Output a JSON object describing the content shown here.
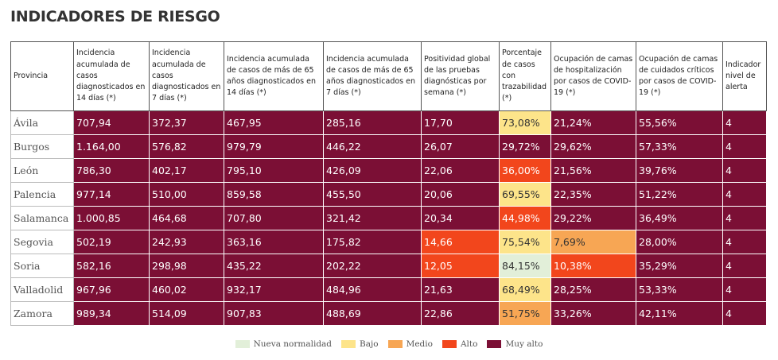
{
  "header": {
    "title": "INDICADORES DE RIESGO"
  },
  "table": {
    "columns": [
      "Provincia",
      "Incidencia acumulada de casos diagnosticados en 14 días (*)",
      "Incidencia acumulada de casos diagnosticados en 7 días (*)",
      "Incidencia acumulada de casos de más de 65 años diagnosticados en 14 días (*)",
      "Incidencia acumulada de casos de más de 65 años diagnosticados en 7 días (*)",
      "Positividad global de las pruebas diagnósticas por semana (*)",
      "Porcentaje de casos con trazabilidad (*)",
      "Ocupación de camas de hospitalización por casos de COVID-19 (*)",
      "Ocupación de camas de cuidados críticos por casos de COVID-19 (*)",
      "Indicador nivel de alerta"
    ],
    "rows": [
      {
        "province": "Ávila",
        "values": [
          "707,94",
          "372,37",
          "467,95",
          "285,16",
          "17,70",
          "73,08%",
          "21,24%",
          "55,56%",
          "4"
        ],
        "colors": [
          "#7b0f35",
          "#7b0f35",
          "#7b0f35",
          "#7b0f35",
          "#7b0f35",
          "#fde48a",
          "#7b0f35",
          "#7b0f35",
          "#7b0f35"
        ]
      },
      {
        "province": "Burgos",
        "values": [
          "1.164,00",
          "576,82",
          "979,79",
          "446,22",
          "26,07",
          "29,72%",
          "29,62%",
          "57,33%",
          "4"
        ],
        "colors": [
          "#7b0f35",
          "#7b0f35",
          "#7b0f35",
          "#7b0f35",
          "#7b0f35",
          "#7b0f35",
          "#7b0f35",
          "#7b0f35",
          "#7b0f35"
        ]
      },
      {
        "province": "León",
        "values": [
          "786,30",
          "402,17",
          "795,10",
          "426,09",
          "22,06",
          "36,00%",
          "21,56%",
          "39,76%",
          "4"
        ],
        "colors": [
          "#7b0f35",
          "#7b0f35",
          "#7b0f35",
          "#7b0f35",
          "#7b0f35",
          "#f2461c",
          "#7b0f35",
          "#7b0f35",
          "#7b0f35"
        ]
      },
      {
        "province": "Palencia",
        "values": [
          "977,14",
          "510,00",
          "859,58",
          "455,50",
          "20,06",
          "69,55%",
          "22,35%",
          "51,22%",
          "4"
        ],
        "colors": [
          "#7b0f35",
          "#7b0f35",
          "#7b0f35",
          "#7b0f35",
          "#7b0f35",
          "#fde48a",
          "#7b0f35",
          "#7b0f35",
          "#7b0f35"
        ]
      },
      {
        "province": "Salamanca",
        "values": [
          "1.000,85",
          "464,68",
          "707,80",
          "321,42",
          "20,34",
          "44,98%",
          "29,22%",
          "36,49%",
          "4"
        ],
        "colors": [
          "#7b0f35",
          "#7b0f35",
          "#7b0f35",
          "#7b0f35",
          "#7b0f35",
          "#f2461c",
          "#7b0f35",
          "#7b0f35",
          "#7b0f35"
        ]
      },
      {
        "province": "Segovia",
        "values": [
          "502,19",
          "242,93",
          "363,16",
          "175,82",
          "14,66",
          "75,54%",
          "7,69%",
          "28,00%",
          "4"
        ],
        "colors": [
          "#7b0f35",
          "#7b0f35",
          "#7b0f35",
          "#7b0f35",
          "#f2461c",
          "#fde48a",
          "#f7a654",
          "#7b0f35",
          "#7b0f35"
        ]
      },
      {
        "province": "Soria",
        "values": [
          "582,16",
          "298,98",
          "435,22",
          "202,22",
          "12,05",
          "84,15%",
          "10,38%",
          "35,29%",
          "4"
        ],
        "colors": [
          "#7b0f35",
          "#7b0f35",
          "#7b0f35",
          "#7b0f35",
          "#f2461c",
          "#e2efd9",
          "#f2461c",
          "#7b0f35",
          "#7b0f35"
        ]
      },
      {
        "province": "Valladolid",
        "values": [
          "967,96",
          "460,02",
          "932,17",
          "484,96",
          "21,63",
          "68,49%",
          "28,25%",
          "53,33%",
          "4"
        ],
        "colors": [
          "#7b0f35",
          "#7b0f35",
          "#7b0f35",
          "#7b0f35",
          "#7b0f35",
          "#fde48a",
          "#7b0f35",
          "#7b0f35",
          "#7b0f35"
        ]
      },
      {
        "province": "Zamora",
        "values": [
          "989,34",
          "514,09",
          "907,83",
          "488,69",
          "22,86",
          "51,75%",
          "33,26%",
          "42,11%",
          "4"
        ],
        "colors": [
          "#7b0f35",
          "#7b0f35",
          "#7b0f35",
          "#7b0f35",
          "#7b0f35",
          "#f7a654",
          "#7b0f35",
          "#7b0f35",
          "#7b0f35"
        ]
      }
    ]
  },
  "legend": [
    {
      "name": "Nueva normalidad",
      "color": "#e2efd9"
    },
    {
      "name": "Bajo",
      "color": "#fde48a"
    },
    {
      "name": "Medio",
      "color": "#f7a654"
    },
    {
      "name": "Alto",
      "color": "#f2461c"
    },
    {
      "name": "Muy alto",
      "color": "#7b0f35"
    }
  ]
}
